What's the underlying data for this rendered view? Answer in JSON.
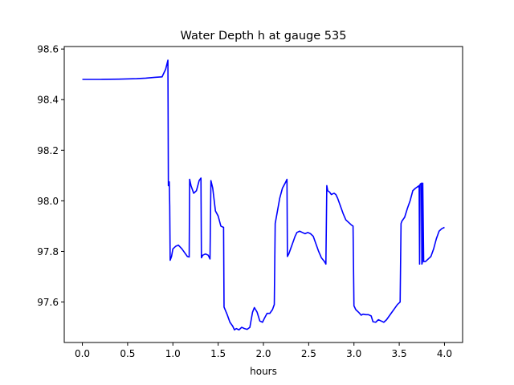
{
  "chart_data": {
    "type": "line",
    "title": "Water Depth h at gauge 535",
    "xlabel": "hours",
    "ylabel": "",
    "xlim": [
      -0.2,
      4.2
    ],
    "ylim": [
      97.44,
      98.61
    ],
    "xticks": [
      0.0,
      0.5,
      1.0,
      1.5,
      2.0,
      2.5,
      3.0,
      3.5,
      4.0
    ],
    "xtick_labels": [
      "0.0",
      "0.5",
      "1.0",
      "1.5",
      "2.0",
      "2.5",
      "3.0",
      "3.5",
      "4.0"
    ],
    "yticks": [
      97.6,
      97.8,
      98.0,
      98.2,
      98.4,
      98.6
    ],
    "ytick_labels": [
      "97.6",
      "97.8",
      "98.0",
      "98.2",
      "98.4",
      "98.6"
    ],
    "grid": false,
    "legend": "none",
    "series": [
      {
        "color": "#0000ff",
        "x": [
          0.0,
          0.2,
          0.4,
          0.6,
          0.7,
          0.8,
          0.88,
          0.92,
          0.945,
          0.95,
          0.96,
          0.965,
          0.97,
          0.985,
          1.0,
          1.03,
          1.06,
          1.1,
          1.13,
          1.16,
          1.18,
          1.185,
          1.2,
          1.23,
          1.26,
          1.29,
          1.31,
          1.315,
          1.33,
          1.36,
          1.39,
          1.41,
          1.42,
          1.44,
          1.47,
          1.5,
          1.53,
          1.56,
          1.565,
          1.6,
          1.63,
          1.66,
          1.68,
          1.7,
          1.73,
          1.76,
          1.79,
          1.82,
          1.85,
          1.88,
          1.9,
          1.93,
          1.96,
          1.99,
          2.01,
          2.04,
          2.07,
          2.1,
          2.12,
          2.13,
          2.15,
          2.18,
          2.21,
          2.24,
          2.26,
          2.265,
          2.28,
          2.3,
          2.33,
          2.35,
          2.37,
          2.4,
          2.43,
          2.46,
          2.49,
          2.52,
          2.55,
          2.58,
          2.61,
          2.64,
          2.67,
          2.69,
          2.7,
          2.71,
          2.73,
          2.75,
          2.78,
          2.8,
          2.82,
          2.85,
          2.88,
          2.91,
          2.94,
          2.97,
          2.99,
          3.0,
          3.02,
          3.05,
          3.08,
          3.1,
          3.13,
          3.16,
          3.19,
          3.21,
          3.24,
          3.27,
          3.3,
          3.33,
          3.36,
          3.39,
          3.42,
          3.45,
          3.48,
          3.51,
          3.52,
          3.53,
          3.56,
          3.59,
          3.62,
          3.65,
          3.68,
          3.7,
          3.72,
          3.725,
          3.73,
          3.745,
          3.75,
          3.755,
          3.76,
          3.77,
          3.79,
          3.82,
          3.85,
          3.88,
          3.91,
          3.94,
          3.97,
          4.0
        ],
        "y": [
          98.48,
          98.48,
          98.481,
          98.483,
          98.485,
          98.488,
          98.49,
          98.52,
          98.556,
          98.06,
          98.075,
          97.98,
          97.765,
          97.78,
          97.81,
          97.82,
          97.825,
          97.81,
          97.795,
          97.78,
          97.778,
          98.085,
          98.06,
          98.03,
          98.04,
          98.08,
          98.09,
          97.775,
          97.785,
          97.79,
          97.785,
          97.77,
          98.08,
          98.05,
          97.96,
          97.94,
          97.9,
          97.895,
          97.58,
          97.55,
          97.52,
          97.505,
          97.49,
          97.495,
          97.49,
          97.5,
          97.495,
          97.492,
          97.5,
          97.56,
          97.578,
          97.56,
          97.525,
          97.52,
          97.535,
          97.555,
          97.555,
          97.57,
          97.59,
          97.91,
          97.95,
          98.01,
          98.05,
          98.07,
          98.085,
          97.78,
          97.79,
          97.81,
          97.84,
          97.86,
          97.875,
          97.88,
          97.875,
          97.87,
          97.875,
          97.87,
          97.86,
          97.83,
          97.8,
          97.775,
          97.762,
          97.75,
          98.06,
          98.04,
          98.035,
          98.025,
          98.03,
          98.025,
          98.01,
          97.98,
          97.95,
          97.925,
          97.915,
          97.905,
          97.9,
          97.585,
          97.57,
          97.56,
          97.548,
          97.552,
          97.55,
          97.55,
          97.545,
          97.522,
          97.52,
          97.53,
          97.525,
          97.52,
          97.53,
          97.545,
          97.56,
          97.575,
          97.59,
          97.6,
          97.91,
          97.92,
          97.935,
          97.97,
          98.0,
          98.04,
          98.05,
          98.055,
          98.06,
          97.75,
          98.065,
          98.07,
          97.75,
          97.755,
          98.07,
          97.76,
          97.76,
          97.77,
          97.78,
          97.81,
          97.85,
          97.88,
          97.89,
          97.895
        ]
      }
    ]
  }
}
